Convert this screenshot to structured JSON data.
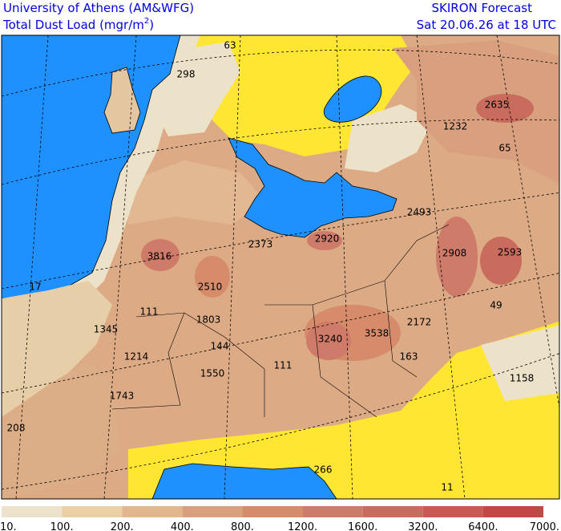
{
  "header": {
    "institution": "University of Athens (AM&WFG)",
    "product_prefix": "Total Dust Load (mgr/m",
    "product_superscript": "2",
    "product_suffix": ")",
    "forecast": "SKIRON Forecast",
    "valid_time": "Sat 20.06.26 at 18 UTC"
  },
  "map": {
    "labels": [
      "63",
      "298",
      "2635",
      "1232",
      "65",
      "2493",
      "2373",
      "2920",
      "3816",
      "2908",
      "2593",
      "17",
      "2510",
      "111",
      "49",
      "1803",
      "1345",
      "2172",
      "3240",
      "3538",
      "144",
      "1214",
      "163",
      "111",
      "1550",
      "1158",
      "1743",
      "208",
      "266",
      "11"
    ]
  },
  "legend": {
    "labels": [
      "10.",
      "100.",
      "200.",
      "400.",
      "800.",
      "1200.",
      "1600.",
      "3200.",
      "6400.",
      "7000."
    ],
    "colors": [
      "#ede3cd",
      "#ead0a4",
      "#e2b78e",
      "#d9a07f",
      "#d68c6a",
      "#cf7b6a",
      "#c96c5e",
      "#c55b52",
      "#bf4a45"
    ]
  }
}
